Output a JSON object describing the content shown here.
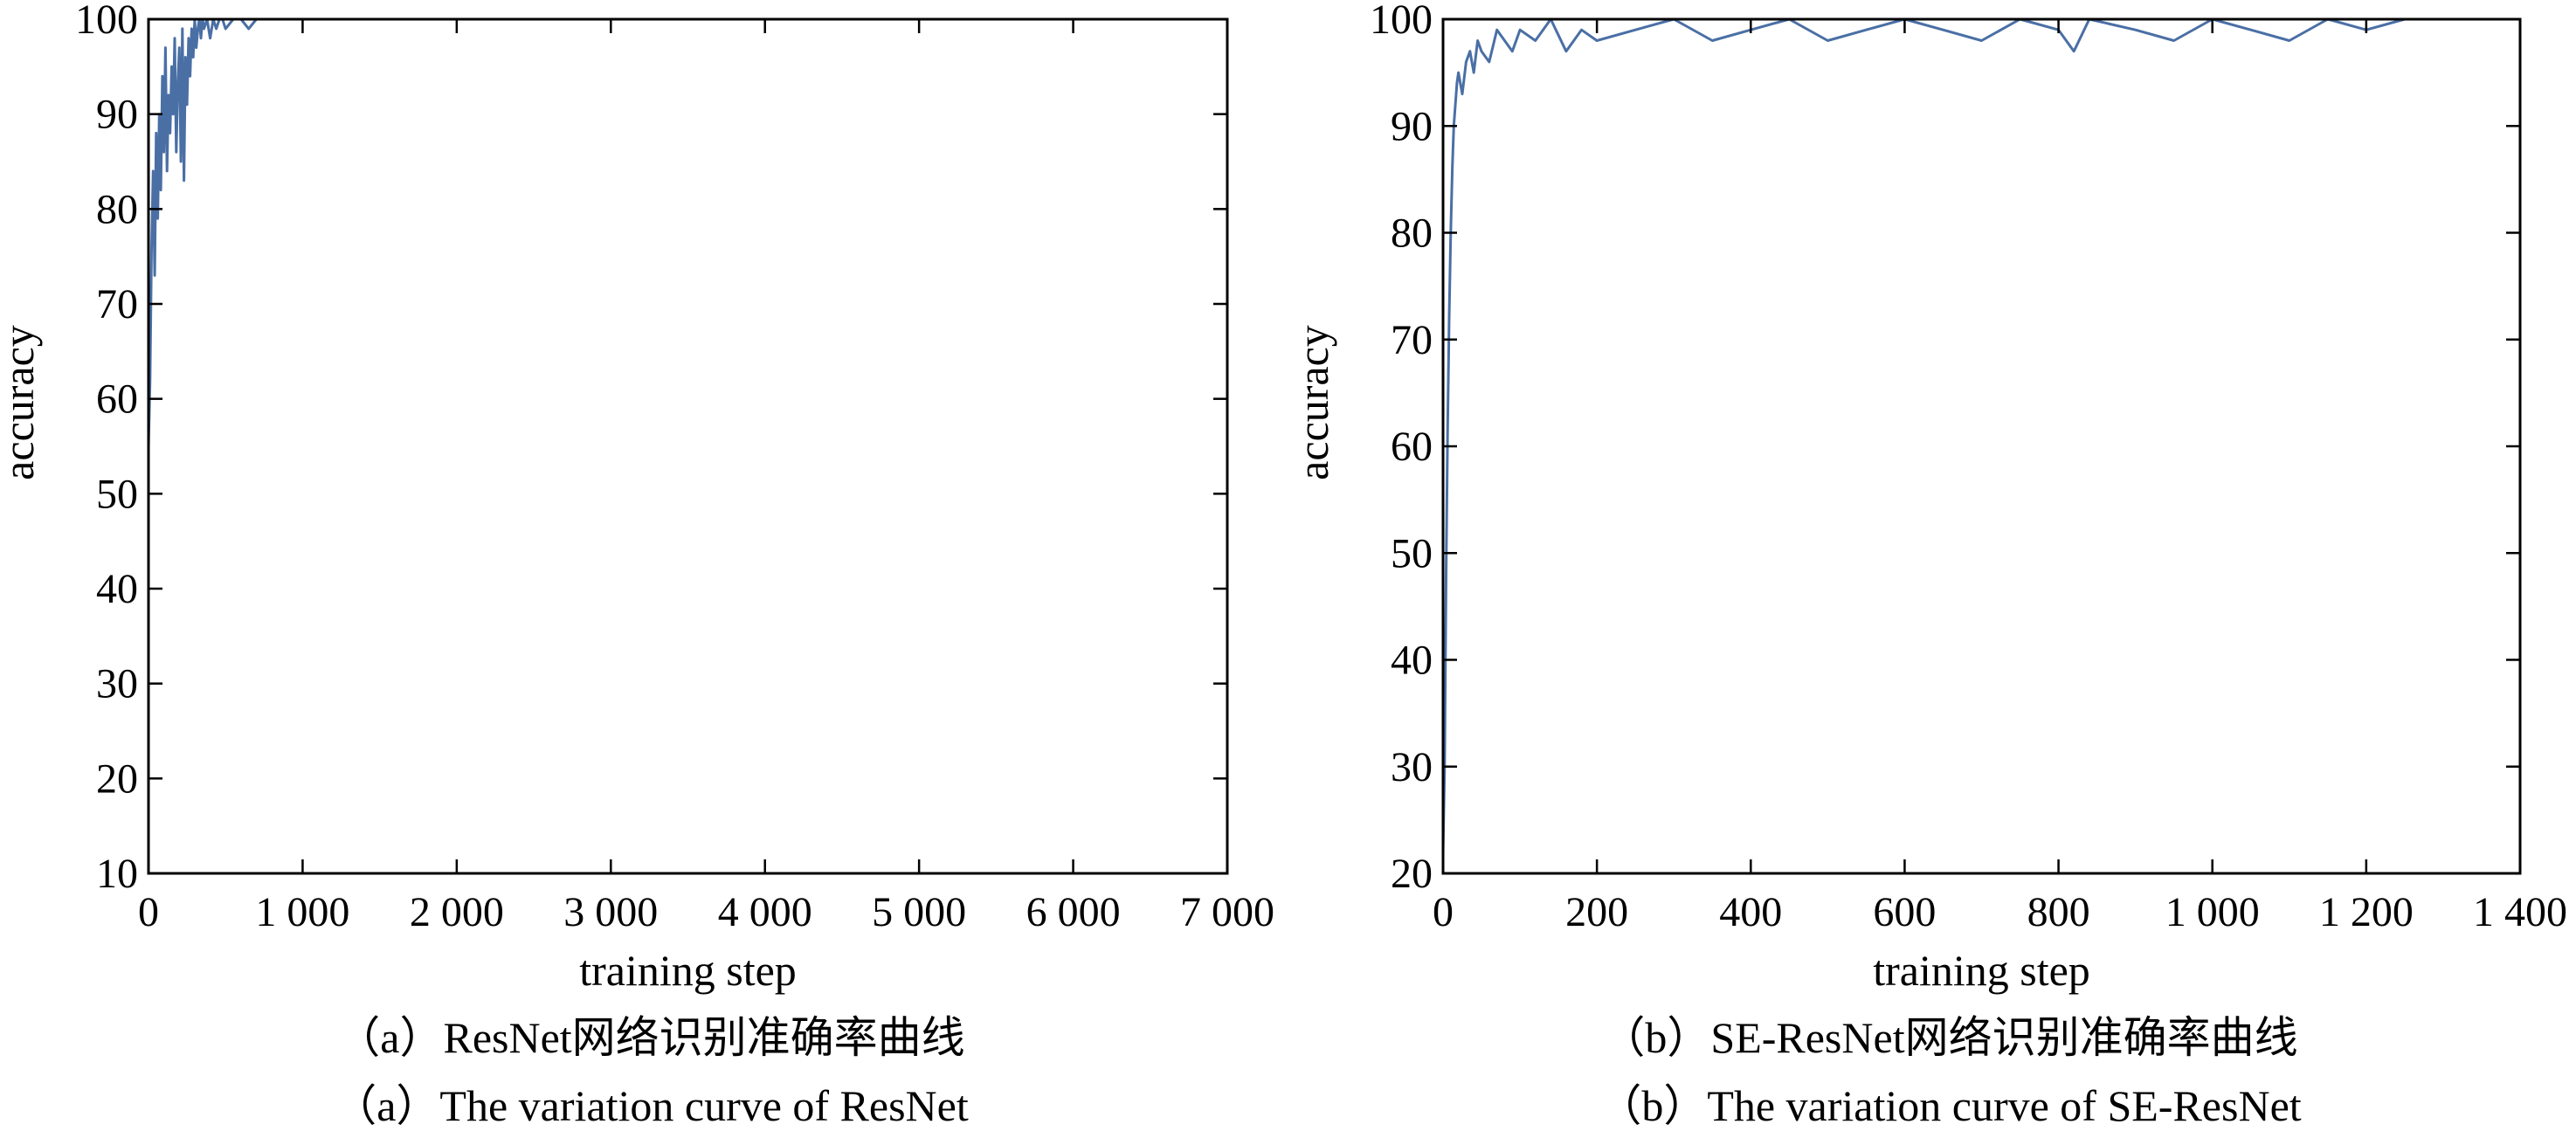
{
  "chart_data": [
    {
      "type": "line",
      "panel_id": "a",
      "title": "",
      "xlabel": "training step",
      "ylabel": "accuracy",
      "xlim": [
        0,
        7000
      ],
      "ylim": [
        10,
        100
      ],
      "x_ticks": [
        0,
        1000,
        2000,
        3000,
        4000,
        5000,
        6000,
        7000
      ],
      "x_tick_labels": [
        "0",
        "1 000",
        "2 000",
        "3 000",
        "4 000",
        "5 000",
        "6 000",
        "7 000"
      ],
      "y_ticks": [
        10,
        20,
        30,
        40,
        50,
        60,
        70,
        80,
        90,
        100
      ],
      "y_tick_labels": [
        "10",
        "20",
        "30",
        "40",
        "50",
        "60",
        "70",
        "80",
        "90",
        "100"
      ],
      "grid": false,
      "line_color": "#4a6fa5",
      "series": [
        {
          "x": [
            0,
            10,
            20,
            30,
            40,
            50,
            60,
            70,
            80,
            90,
            100,
            110,
            120,
            130,
            140,
            150,
            160,
            170,
            180,
            190,
            200,
            210,
            220,
            230,
            240,
            250,
            260,
            270,
            280,
            290,
            300,
            310,
            320,
            330,
            340,
            350,
            360,
            380,
            400,
            420,
            440,
            460,
            480,
            500,
            550,
            600,
            650,
            700
          ],
          "values": [
            55,
            62,
            76,
            84,
            73,
            88,
            79,
            90,
            82,
            94,
            86,
            97,
            84,
            92,
            88,
            95,
            90,
            98,
            86,
            93,
            97,
            85,
            99,
            83,
            96,
            91,
            98,
            94,
            99,
            96,
            100,
            97,
            99,
            100,
            98,
            100,
            99,
            100,
            98,
            100,
            99,
            100,
            100,
            99,
            100,
            100,
            99,
            100
          ]
        }
      ]
    },
    {
      "type": "line",
      "panel_id": "b",
      "title": "",
      "xlabel": "training step",
      "ylabel": "accuracy",
      "xlim": [
        0,
        1400
      ],
      "ylim": [
        20,
        100
      ],
      "x_ticks": [
        0,
        200,
        400,
        600,
        800,
        1000,
        1200,
        1400
      ],
      "x_tick_labels": [
        "0",
        "200",
        "400",
        "600",
        "800",
        "1 000",
        "1 200",
        "1 400"
      ],
      "y_ticks": [
        20,
        30,
        40,
        50,
        60,
        70,
        80,
        90,
        100
      ],
      "y_tick_labels": [
        "20",
        "30",
        "40",
        "50",
        "60",
        "70",
        "80",
        "90",
        "100"
      ],
      "grid": false,
      "line_color": "#4a6fa5",
      "series": [
        {
          "x": [
            0,
            2,
            4,
            6,
            8,
            10,
            12,
            14,
            16,
            18,
            20,
            25,
            30,
            35,
            40,
            45,
            50,
            60,
            70,
            80,
            90,
            100,
            120,
            140,
            160,
            180,
            200,
            250,
            300,
            350,
            400,
            450,
            500,
            550,
            600,
            650,
            700,
            750,
            800,
            820,
            840,
            900,
            950,
            1000,
            1050,
            1100,
            1150,
            1200,
            1250,
            1300
          ],
          "values": [
            22,
            30,
            48,
            62,
            72,
            80,
            86,
            90,
            92,
            94,
            95,
            93,
            96,
            97,
            95,
            98,
            97,
            96,
            99,
            98,
            97,
            99,
            98,
            100,
            97,
            99,
            98,
            99,
            100,
            98,
            99,
            100,
            98,
            99,
            100,
            99,
            98,
            100,
            99,
            97,
            100,
            99,
            98,
            100,
            99,
            98,
            100,
            99,
            100,
            100
          ]
        }
      ]
    }
  ],
  "captions": {
    "a_cn": "（a）ResNet网络识别准确率曲线",
    "a_en": "（a）The variation curve of ResNet",
    "b_cn": "（b）SE-ResNet网络识别准确率曲线",
    "b_en": "（b）The variation curve of SE-ResNet"
  }
}
